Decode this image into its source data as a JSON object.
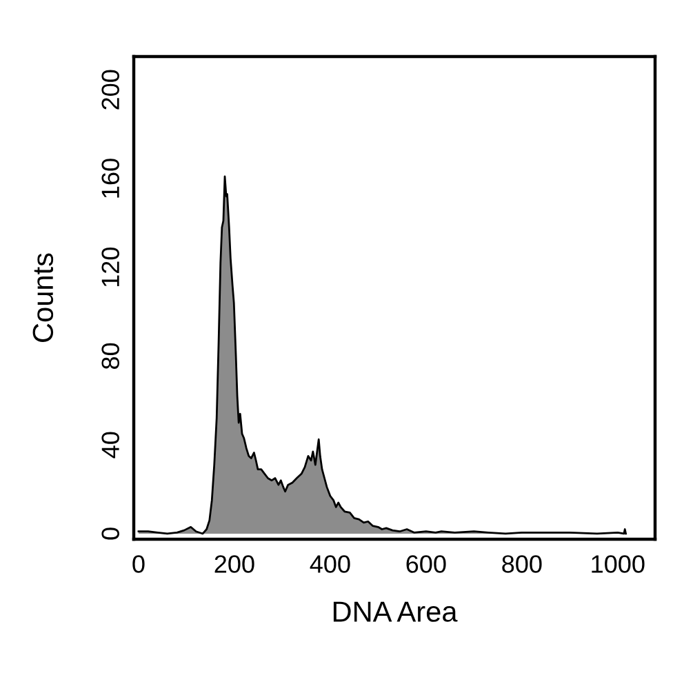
{
  "chart_data": {
    "type": "area",
    "xlabel": "DNA Area",
    "ylabel": "Counts",
    "x": [
      0,
      20,
      40,
      60,
      80,
      95,
      109,
      120,
      134,
      142,
      148,
      153,
      158,
      163,
      167,
      171,
      174,
      177,
      180,
      183,
      185,
      189,
      192,
      196,
      199,
      203,
      206,
      209,
      212,
      216,
      220,
      225,
      230,
      235,
      241,
      245,
      249,
      256,
      263,
      270,
      278,
      285,
      292,
      297,
      302,
      306,
      312,
      321,
      330,
      340,
      347,
      354,
      360,
      364,
      369,
      372,
      376,
      379,
      383,
      388,
      393,
      400,
      407,
      412,
      417,
      422,
      430,
      441,
      450,
      460,
      470,
      479,
      489,
      500,
      508,
      517,
      530,
      545,
      560,
      575,
      600,
      620,
      632,
      660,
      700,
      730,
      766,
      800,
      850,
      900,
      957,
      1000,
      1013,
      1015,
      1017
    ],
    "values": [
      1,
      1,
      0.5,
      0,
      0.5,
      1.5,
      3,
      1,
      0,
      2,
      6,
      15,
      31,
      52,
      85,
      122,
      138,
      141,
      161,
      152,
      153,
      138,
      124,
      112,
      104,
      81,
      62,
      50,
      54,
      45,
      43,
      38.5,
      35,
      34,
      36.5,
      33,
      29,
      29,
      27,
      25,
      24,
      25,
      22,
      24,
      21,
      19,
      22,
      23,
      25,
      27,
      30,
      35,
      33,
      37,
      31,
      36,
      42.5,
      35,
      29,
      25,
      21,
      17,
      15,
      12,
      14,
      12,
      10,
      9.5,
      7,
      6.5,
      5,
      5.5,
      3.5,
      3,
      2,
      2.5,
      1.5,
      1,
      2,
      0.5,
      1,
      0.5,
      1,
      0.5,
      1,
      0.5,
      0,
      0.5,
      0.5,
      0.5,
      0,
      0.5,
      0,
      2,
      0
    ],
    "color": "#8c8c8c",
    "xlim": [
      -10,
      1078
    ],
    "ylim": [
      -2.5,
      215
    ],
    "xticks": [
      0,
      200,
      400,
      600,
      800,
      1000
    ],
    "yticks": [
      0,
      40,
      80,
      120,
      160,
      200
    ],
    "grid": false
  }
}
